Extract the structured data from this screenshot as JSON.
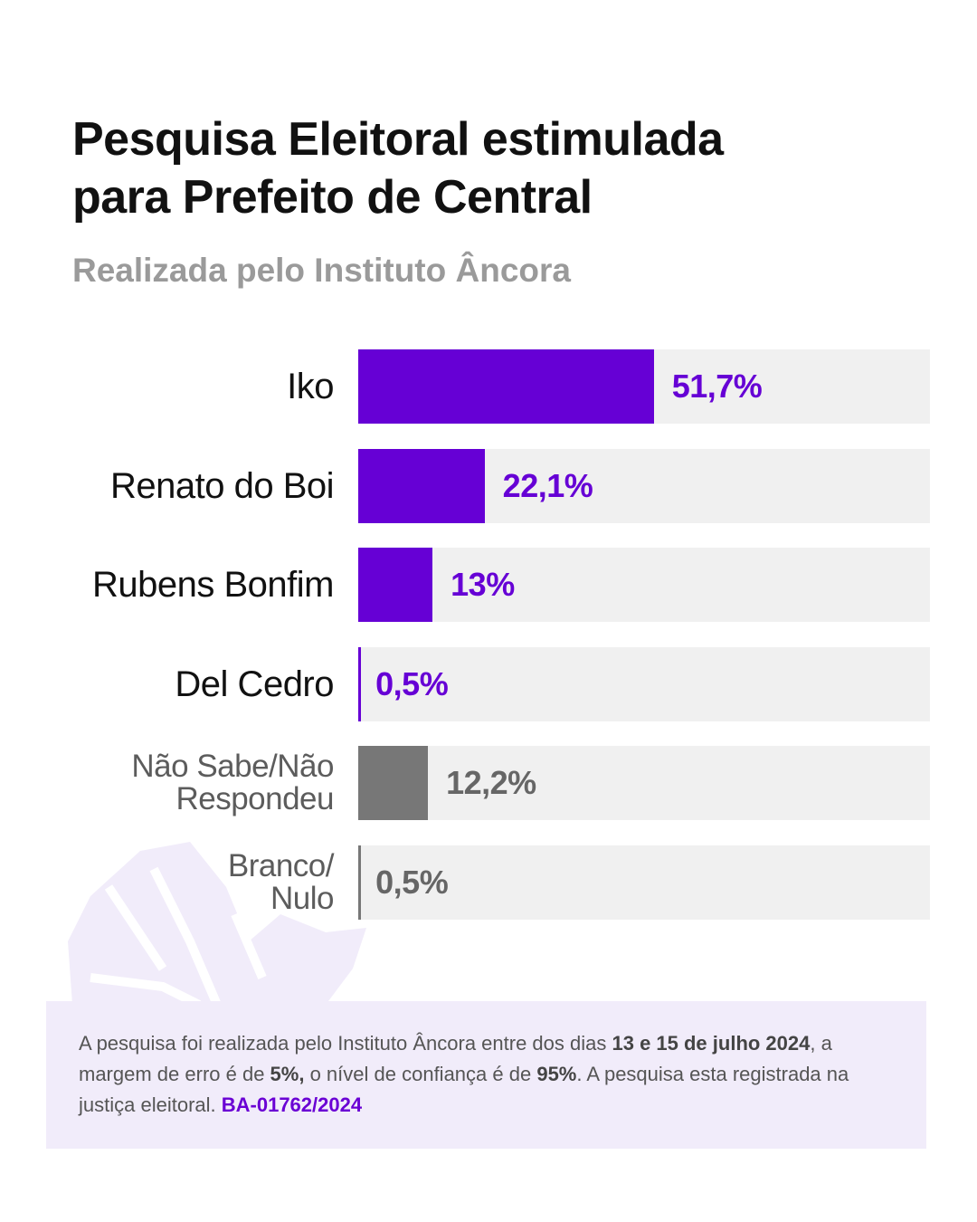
{
  "header": {
    "title_line1": "Pesquisa Eleitoral estimulada",
    "title_line2": "para Prefeito de Central",
    "subtitle": "Realizada pelo Instituto Âncora"
  },
  "colors": {
    "accent": "#6600d5",
    "neutral": "#777777",
    "track": "#f0f0f0",
    "note_bg": "#f1ecfa"
  },
  "chart_data": {
    "type": "bar",
    "orientation": "horizontal",
    "categories": [
      "Iko",
      "Renato do Boi",
      "Rubens Bonfim",
      "Del Cedro",
      "Não Sabe/Não\nRespondeu",
      "Branco/\nNulo"
    ],
    "values": [
      51.7,
      22.1,
      13,
      0.5,
      12.2,
      0.5
    ],
    "value_labels": [
      "51,7%",
      "22,1%",
      "13%",
      "0,5%",
      "12,2%",
      "0,5%"
    ],
    "highlight": [
      true,
      true,
      true,
      true,
      false,
      false
    ],
    "xlim": [
      0,
      100
    ],
    "unit": "%",
    "grid": false,
    "legend": "none"
  },
  "note": {
    "part1": "A pesquisa foi realizada pelo Instituto Âncora entre dos dias ",
    "dates": "13 e 15 de julho 2024",
    "part2": ", a margem de erro é de ",
    "margin": "5%,",
    "part3": " o nível de confiança é de ",
    "confidence": "95%",
    "part4": ". A pesquisa esta registrada na justiça eleitoral. ",
    "registration": "BA-01762/2024"
  }
}
